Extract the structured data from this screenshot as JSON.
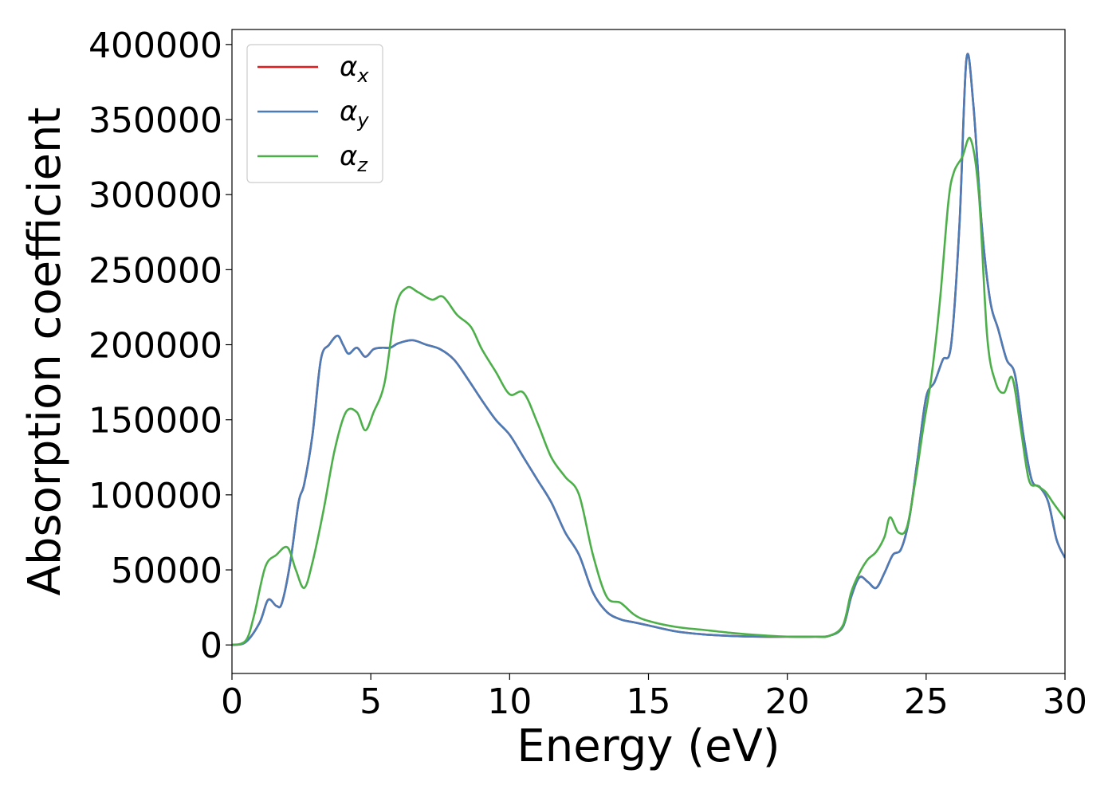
{
  "chart_data": {
    "type": "line",
    "title": "",
    "xlabel": "Energy (eV)",
    "ylabel": "Absorption coefficient",
    "xlim": [
      0,
      30
    ],
    "ylim": [
      -19000,
      410000
    ],
    "x_ticks": [
      0,
      5,
      10,
      15,
      20,
      25,
      30
    ],
    "x_tick_labels": [
      "0",
      "5",
      "10",
      "15",
      "20",
      "25",
      "30"
    ],
    "y_ticks": [
      0,
      50000,
      100000,
      150000,
      200000,
      250000,
      300000,
      350000,
      400000
    ],
    "y_tick_labels": [
      "0",
      "50000",
      "100000",
      "150000",
      "200000",
      "250000",
      "300000",
      "350000",
      "400000"
    ],
    "grid": false,
    "legend_position": "top-left",
    "series": [
      {
        "name": "α",
        "subscript": "x",
        "color": "#e41a1c",
        "x": [
          0,
          0.5,
          1.0,
          1.3,
          1.6,
          1.8,
          2.1,
          2.4,
          2.6,
          2.9,
          3.2,
          3.5,
          3.8,
          4.0,
          4.2,
          4.5,
          4.8,
          5.1,
          5.4,
          5.7,
          6.0,
          6.5,
          7.0,
          7.5,
          8.0,
          8.5,
          9.0,
          9.5,
          10.0,
          10.5,
          11.0,
          11.5,
          12.0,
          12.5,
          13.0,
          13.5,
          14.0,
          14.5,
          15.0,
          16.0,
          17.0,
          18.0,
          19.0,
          20.0,
          21.0,
          21.5,
          22.0,
          22.3,
          22.6,
          22.9,
          23.2,
          23.5,
          23.8,
          24.1,
          24.4,
          24.7,
          25.0,
          25.3,
          25.6,
          25.9,
          26.2,
          26.45,
          26.7,
          27.0,
          27.3,
          27.6,
          27.9,
          28.2,
          28.5,
          28.8,
          29.1,
          29.4,
          29.7,
          30.0
        ],
        "y": [
          0,
          2000,
          15000,
          30000,
          26000,
          28000,
          55000,
          95000,
          107000,
          140000,
          190000,
          200000,
          206000,
          200000,
          194000,
          198000,
          192000,
          197000,
          198000,
          198000,
          201000,
          203000,
          200000,
          197000,
          190000,
          177000,
          163000,
          150000,
          140000,
          125000,
          110000,
          95000,
          75000,
          60000,
          35000,
          22000,
          17000,
          15000,
          13000,
          9000,
          7000,
          6000,
          5500,
          5500,
          5500,
          6000,
          12000,
          32000,
          45000,
          42000,
          38000,
          48000,
          60000,
          64000,
          85000,
          125000,
          165000,
          175000,
          190000,
          200000,
          280000,
          390000,
          360000,
          280000,
          230000,
          210000,
          190000,
          180000,
          140000,
          110000,
          105000,
          95000,
          70000,
          58000
        ]
      },
      {
        "name": "α",
        "subscript": "y",
        "color": "#4a7db8",
        "x": [
          0,
          0.5,
          1.0,
          1.3,
          1.6,
          1.8,
          2.1,
          2.4,
          2.6,
          2.9,
          3.2,
          3.5,
          3.8,
          4.0,
          4.2,
          4.5,
          4.8,
          5.1,
          5.4,
          5.7,
          6.0,
          6.5,
          7.0,
          7.5,
          8.0,
          8.5,
          9.0,
          9.5,
          10.0,
          10.5,
          11.0,
          11.5,
          12.0,
          12.5,
          13.0,
          13.5,
          14.0,
          14.5,
          15.0,
          16.0,
          17.0,
          18.0,
          19.0,
          20.0,
          21.0,
          21.5,
          22.0,
          22.3,
          22.6,
          22.9,
          23.2,
          23.5,
          23.8,
          24.1,
          24.4,
          24.7,
          25.0,
          25.3,
          25.6,
          25.9,
          26.2,
          26.45,
          26.7,
          27.0,
          27.3,
          27.6,
          27.9,
          28.2,
          28.5,
          28.8,
          29.1,
          29.4,
          29.7,
          30.0
        ],
        "y": [
          0,
          2000,
          15000,
          30000,
          26000,
          28000,
          55000,
          95000,
          107000,
          140000,
          190000,
          200000,
          206000,
          200000,
          194000,
          198000,
          192000,
          197000,
          198000,
          198000,
          201000,
          203000,
          200000,
          197000,
          190000,
          177000,
          163000,
          150000,
          140000,
          125000,
          110000,
          95000,
          75000,
          60000,
          35000,
          22000,
          17000,
          15000,
          13000,
          9000,
          7000,
          6000,
          5500,
          5500,
          5500,
          6000,
          12000,
          32000,
          45000,
          42000,
          38000,
          48000,
          60000,
          64000,
          85000,
          125000,
          165000,
          175000,
          190000,
          200000,
          280000,
          390000,
          360000,
          280000,
          230000,
          210000,
          190000,
          180000,
          140000,
          110000,
          105000,
          95000,
          70000,
          58000
        ]
      },
      {
        "name": "α",
        "subscript": "z",
        "color": "#4daf4a",
        "x": [
          0,
          0.5,
          0.8,
          1.2,
          1.6,
          2.0,
          2.3,
          2.6,
          2.9,
          3.3,
          3.7,
          4.1,
          4.5,
          4.8,
          5.1,
          5.5,
          5.9,
          6.3,
          6.7,
          7.2,
          7.6,
          8.1,
          8.6,
          9.0,
          9.5,
          10.0,
          10.5,
          11.0,
          11.5,
          12.0,
          12.5,
          13.0,
          13.5,
          14.0,
          14.5,
          15.0,
          16.0,
          17.0,
          18.0,
          19.0,
          20.0,
          21.0,
          21.5,
          22.0,
          22.3,
          22.6,
          22.9,
          23.2,
          23.5,
          23.7,
          24.0,
          24.3,
          24.6,
          24.9,
          25.2,
          25.5,
          25.8,
          26.0,
          26.3,
          26.6,
          26.9,
          27.2,
          27.5,
          27.8,
          28.1,
          28.4,
          28.7,
          29.0,
          29.3,
          29.6,
          30.0
        ],
        "y": [
          0,
          3000,
          20000,
          52000,
          60000,
          65000,
          50000,
          38000,
          55000,
          90000,
          130000,
          155000,
          155000,
          143000,
          155000,
          175000,
          225000,
          238000,
          235000,
          230000,
          232000,
          220000,
          212000,
          197000,
          182000,
          167000,
          168000,
          148000,
          125000,
          112000,
          100000,
          60000,
          32000,
          28000,
          20000,
          16000,
          12000,
          10000,
          8000,
          6500,
          5500,
          5500,
          6000,
          13000,
          35000,
          48000,
          57000,
          62000,
          72000,
          85000,
          75000,
          78000,
          108000,
          145000,
          180000,
          230000,
          295000,
          315000,
          325000,
          337000,
          300000,
          205000,
          175000,
          168000,
          178000,
          145000,
          110000,
          106000,
          102000,
          94000,
          84000
        ]
      }
    ]
  }
}
